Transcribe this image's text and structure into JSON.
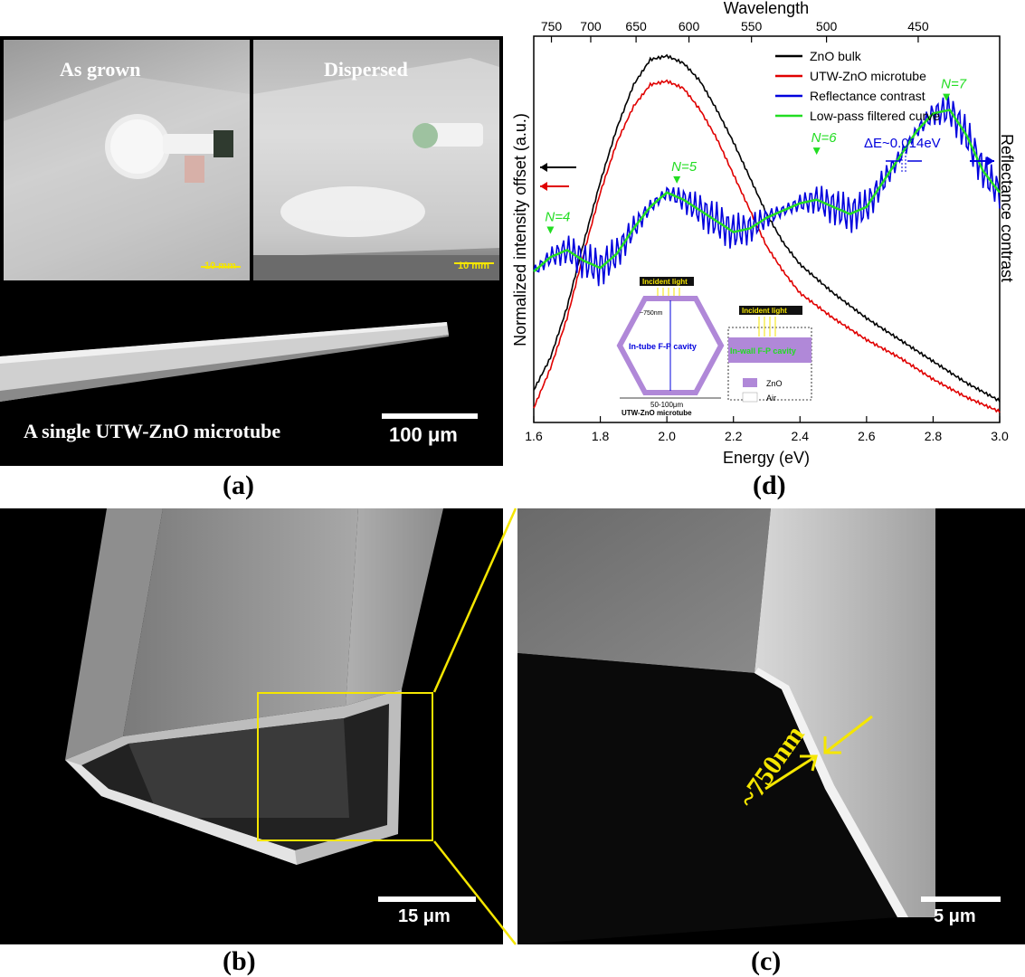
{
  "panel_labels": {
    "a": "(a)",
    "b": "(b)",
    "c": "(c)",
    "d": "(d)"
  },
  "panel_a": {
    "photo_left_label": "As grown",
    "photo_right_label": "Dispersed",
    "scale_left": "10 mm",
    "scale_right": "10 mm",
    "sem_caption": "A single UTW-ZnO microtube",
    "sem_scale": "100 μm"
  },
  "panel_b": {
    "scale": "15 μm"
  },
  "panel_c": {
    "scale": "5 μm",
    "thickness_label": "~750nm"
  },
  "chart_data": {
    "type": "line",
    "xlabel": "Energy (eV)",
    "ylabel": "Normalized intensity offset (a.u.)",
    "y2label": "Reflectance contrast",
    "top_axis_label": "Wavelength",
    "xlim": [
      1.6,
      3.0
    ],
    "x_ticks": [
      "1.6",
      "1.8",
      "2.0",
      "2.2",
      "2.4",
      "2.6",
      "2.8",
      "3.0"
    ],
    "top_ticks": [
      "750",
      "700",
      "650",
      "600",
      "550",
      "500",
      "450"
    ],
    "legend_position": "top-right",
    "series": [
      {
        "name": "ZnO bulk",
        "color": "#000000",
        "x": [
          1.6,
          1.65,
          1.7,
          1.75,
          1.8,
          1.85,
          1.9,
          1.95,
          2.0,
          2.05,
          2.1,
          2.15,
          2.2,
          2.25,
          2.3,
          2.35,
          2.4,
          2.5,
          2.6,
          2.7,
          2.8,
          2.9,
          3.0
        ],
        "y": [
          0.07,
          0.16,
          0.3,
          0.48,
          0.65,
          0.8,
          0.92,
          0.99,
          1.0,
          0.98,
          0.93,
          0.85,
          0.76,
          0.66,
          0.56,
          0.48,
          0.42,
          0.34,
          0.27,
          0.21,
          0.15,
          0.09,
          0.04
        ]
      },
      {
        "name": "UTW-ZnO microtube",
        "color": "#e00000",
        "x": [
          1.6,
          1.65,
          1.7,
          1.75,
          1.8,
          1.85,
          1.9,
          1.95,
          2.0,
          2.05,
          2.1,
          2.15,
          2.2,
          2.25,
          2.3,
          2.35,
          2.4,
          2.5,
          2.6,
          2.7,
          2.8,
          2.9,
          3.0
        ],
        "y": [
          0.02,
          0.13,
          0.27,
          0.45,
          0.62,
          0.76,
          0.86,
          0.92,
          0.93,
          0.91,
          0.85,
          0.77,
          0.67,
          0.57,
          0.47,
          0.4,
          0.34,
          0.27,
          0.21,
          0.16,
          0.1,
          0.05,
          0.01
        ]
      },
      {
        "name": "Reflectance contrast",
        "color": "#0000dd",
        "x": [
          1.6,
          1.65,
          1.7,
          1.75,
          1.8,
          1.85,
          1.9,
          1.95,
          2.0,
          2.05,
          2.1,
          2.15,
          2.2,
          2.25,
          2.3,
          2.35,
          2.4,
          2.45,
          2.5,
          2.55,
          2.6,
          2.65,
          2.7,
          2.75,
          2.8,
          2.85,
          2.9,
          2.95,
          3.0
        ],
        "y": [
          0.4,
          0.44,
          0.46,
          0.43,
          0.41,
          0.45,
          0.52,
          0.58,
          0.62,
          0.6,
          0.57,
          0.54,
          0.51,
          0.52,
          0.55,
          0.57,
          0.59,
          0.6,
          0.58,
          0.56,
          0.58,
          0.65,
          0.72,
          0.79,
          0.84,
          0.85,
          0.78,
          0.68,
          0.62
        ]
      },
      {
        "name": "Low-pass filtered curve",
        "color": "#22dd22",
        "x": [
          1.6,
          1.65,
          1.7,
          1.75,
          1.8,
          1.85,
          1.9,
          1.95,
          2.0,
          2.05,
          2.1,
          2.15,
          2.2,
          2.25,
          2.3,
          2.35,
          2.4,
          2.45,
          2.5,
          2.55,
          2.6,
          2.65,
          2.7,
          2.75,
          2.8,
          2.85,
          2.9,
          2.95,
          3.0
        ],
        "y": [
          0.4,
          0.44,
          0.46,
          0.43,
          0.41,
          0.45,
          0.52,
          0.58,
          0.62,
          0.6,
          0.57,
          0.54,
          0.51,
          0.52,
          0.55,
          0.57,
          0.59,
          0.6,
          0.58,
          0.56,
          0.58,
          0.65,
          0.72,
          0.79,
          0.84,
          0.85,
          0.78,
          0.68,
          0.62
        ]
      }
    ],
    "mode_labels": [
      {
        "text": "N=4",
        "x": 1.65,
        "y": 0.52
      },
      {
        "text": "N=5",
        "x": 2.03,
        "y": 0.66
      },
      {
        "text": "N=6",
        "x": 2.45,
        "y": 0.74
      },
      {
        "text": "N=7",
        "x": 2.84,
        "y": 0.89
      }
    ],
    "delta_e_label": "ΔE~0.014eV",
    "inset": {
      "incident_light": "Incident light",
      "incident_light_2": "Incident light",
      "thickness": "~750nm",
      "in_tube": "In-tube F-P cavity",
      "in_wall": "In-wall F-P cavity",
      "diameter": "50-100μm",
      "name": "UTW-ZnO microtube",
      "legend_zno": "ZnO",
      "legend_air": "Air"
    }
  }
}
